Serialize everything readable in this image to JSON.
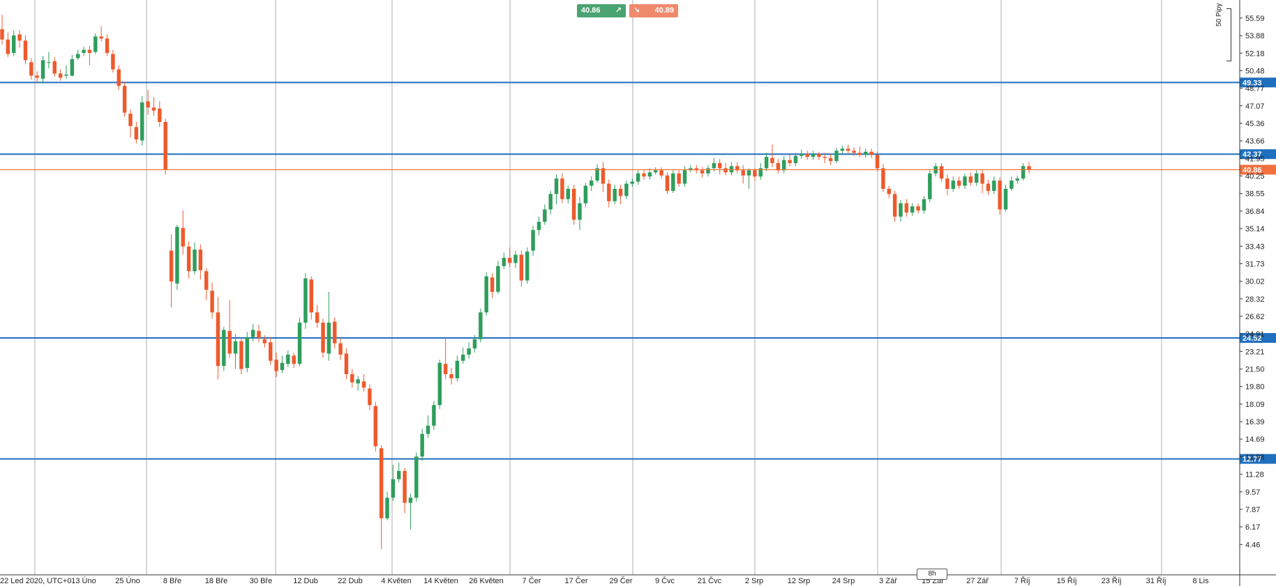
{
  "trade": {
    "buy_value": "40.86",
    "buy_icon": "arrow-up-right-icon",
    "sell_value": "40.89",
    "sell_icon": "arrow-down-right-icon",
    "buy_color": "#4aa372",
    "sell_color": "#f08a6c"
  },
  "timeframe": "8h",
  "scale_label": "50 Pipy",
  "colors": {
    "up": "#2e9e5b",
    "down": "#ee5a2c",
    "level": "#1f6fbf",
    "price": "#f2703f",
    "grid": "#9a9a9a"
  },
  "chart_data": {
    "type": "candlestick",
    "title": "",
    "timezone": "UTC+0",
    "ylim": [
      3.2,
      56.8
    ],
    "y_ticks": [
      "55.59",
      "53.88",
      "52.18",
      "50.48",
      "48.77",
      "47.07",
      "45.36",
      "43.66",
      "41.95",
      "40.25",
      "38.55",
      "36.84",
      "35.14",
      "33.43",
      "31.73",
      "30.02",
      "28.32",
      "26.62",
      "24.91",
      "23.21",
      "21.50",
      "19.80",
      "18.09",
      "16.39",
      "14.69",
      "12.98",
      "11.28",
      "9.57",
      "7.87",
      "6.17",
      "4.46"
    ],
    "x_labels": [
      "22 Led 2020, UTC+0",
      "13 Úno",
      "25 Úno",
      "8 Bře",
      "18 Bře",
      "30 Bře",
      "12 Dub",
      "22 Dub",
      "4 Květen",
      "14 Květen",
      "26 Květen",
      "7 Čer",
      "17 Čer",
      "29 Čer",
      "9 Čvc",
      "21 Čvc",
      "2 Srp",
      "12 Srp",
      "24 Srp",
      "3 Zář",
      "15 Zář",
      "27 Zář",
      "7 Říj",
      "15 Říj",
      "23 Říj",
      "31 Říj",
      "8 Lis"
    ],
    "horizontal_levels": [
      {
        "value": 49.33,
        "label": "49.33"
      },
      {
        "value": 42.37,
        "label": "42.37"
      },
      {
        "value": 24.52,
        "label": "24.52"
      },
      {
        "value": 12.77,
        "label": "12.77"
      }
    ],
    "current_price": {
      "value": 40.86,
      "label": "40.86"
    },
    "candles": [
      [
        54.5,
        53.5,
        55.9,
        53.0
      ],
      [
        53.5,
        52.1,
        54.2,
        51.8
      ],
      [
        52.2,
        53.9,
        54.4,
        51.9
      ],
      [
        54.0,
        53.4,
        54.4,
        52.7
      ],
      [
        53.4,
        51.5,
        53.9,
        51.1
      ],
      [
        51.3,
        50.0,
        51.7,
        49.6
      ],
      [
        50.0,
        49.8,
        50.4,
        49.3
      ],
      [
        49.7,
        51.5,
        51.9,
        49.2
      ],
      [
        51.3,
        51.3,
        52.3,
        50.7
      ],
      [
        51.4,
        50.2,
        51.8,
        49.9
      ],
      [
        50.2,
        49.8,
        50.6,
        49.5
      ],
      [
        50.0,
        50.1,
        51.0,
        49.7
      ],
      [
        50.0,
        51.6,
        52.0,
        49.9
      ],
      [
        51.7,
        52.1,
        52.5,
        51.5
      ],
      [
        52.2,
        52.5,
        52.8,
        51.9
      ],
      [
        52.5,
        52.2,
        52.9,
        51.0
      ],
      [
        52.3,
        53.8,
        54.1,
        52.1
      ],
      [
        53.8,
        53.6,
        54.8,
        53.3
      ],
      [
        53.6,
        52.2,
        54.0,
        51.9
      ],
      [
        52.1,
        50.6,
        52.5,
        50.3
      ],
      [
        50.6,
        49.0,
        51.0,
        48.6
      ],
      [
        49.0,
        46.4,
        49.4,
        46.0
      ],
      [
        46.3,
        45.1,
        46.7,
        44.0
      ],
      [
        45.0,
        43.8,
        45.5,
        43.4
      ],
      [
        43.7,
        47.4,
        48.0,
        43.2
      ],
      [
        47.5,
        46.9,
        48.6,
        46.2
      ],
      [
        46.9,
        46.6,
        47.9,
        46.1
      ],
      [
        46.8,
        45.5,
        47.5,
        45.0
      ],
      [
        45.5,
        40.9,
        45.8,
        40.4
      ],
      [
        33.0,
        30.0,
        34.6,
        27.5
      ],
      [
        29.8,
        35.3,
        35.5,
        29.2
      ],
      [
        35.2,
        33.4,
        36.9,
        32.6
      ],
      [
        33.4,
        31.0,
        33.9,
        30.3
      ],
      [
        31.0,
        33.1,
        33.8,
        30.7
      ],
      [
        33.1,
        31.1,
        33.6,
        30.2
      ],
      [
        31.0,
        29.2,
        31.3,
        28.2
      ],
      [
        29.1,
        27.0,
        29.9,
        26.4
      ],
      [
        27.0,
        21.8,
        28.5,
        20.5
      ],
      [
        21.8,
        25.3,
        25.6,
        21.3
      ],
      [
        25.2,
        23.0,
        28.2,
        22.6
      ],
      [
        23.0,
        24.2,
        24.9,
        21.5
      ],
      [
        24.2,
        21.5,
        24.6,
        21.0
      ],
      [
        21.6,
        24.6,
        25.1,
        21.2
      ],
      [
        24.6,
        25.3,
        25.9,
        24.2
      ],
      [
        25.2,
        24.5,
        25.8,
        24.1
      ],
      [
        24.4,
        24.0,
        24.8,
        23.6
      ],
      [
        24.1,
        22.3,
        24.6,
        21.9
      ],
      [
        22.4,
        21.3,
        23.1,
        20.7
      ],
      [
        21.4,
        22.1,
        22.8,
        21.1
      ],
      [
        22.0,
        22.9,
        23.3,
        21.7
      ],
      [
        22.8,
        22.0,
        23.1,
        21.6
      ],
      [
        22.0,
        26.0,
        26.5,
        21.8
      ],
      [
        26.0,
        30.3,
        30.8,
        25.4
      ],
      [
        30.2,
        27.0,
        30.5,
        26.3
      ],
      [
        27.0,
        26.0,
        27.7,
        25.5
      ],
      [
        26.0,
        23.1,
        26.4,
        22.6
      ],
      [
        23.0,
        26.0,
        29.0,
        22.3
      ],
      [
        26.1,
        24.0,
        26.5,
        23.5
      ],
      [
        24.0,
        22.9,
        24.5,
        22.4
      ],
      [
        23.0,
        21.0,
        23.5,
        20.5
      ],
      [
        21.0,
        20.2,
        21.5,
        19.7
      ],
      [
        20.1,
        20.5,
        20.8,
        19.4
      ],
      [
        20.3,
        19.7,
        21.0,
        19.3
      ],
      [
        19.6,
        18.0,
        20.0,
        17.5
      ],
      [
        17.9,
        14.0,
        18.3,
        13.5
      ],
      [
        13.8,
        7.0,
        14.1,
        4.0
      ],
      [
        7.0,
        9.0,
        9.6,
        6.8
      ],
      [
        9.0,
        10.8,
        12.2,
        8.7
      ],
      [
        10.8,
        11.6,
        12.4,
        10.5
      ],
      [
        11.6,
        8.5,
        11.9,
        7.5
      ],
      [
        8.5,
        9.0,
        9.4,
        5.9
      ],
      [
        9.0,
        13.0,
        13.4,
        8.6
      ],
      [
        13.0,
        15.2,
        15.7,
        12.6
      ],
      [
        15.2,
        16.0,
        17.0,
        14.8
      ],
      [
        16.0,
        18.0,
        18.4,
        15.6
      ],
      [
        18.0,
        22.1,
        22.4,
        17.6
      ],
      [
        22.0,
        21.0,
        24.6,
        20.5
      ],
      [
        21.0,
        20.6,
        21.6,
        20.0
      ],
      [
        20.6,
        22.3,
        22.8,
        20.3
      ],
      [
        22.3,
        22.9,
        23.6,
        22.0
      ],
      [
        22.9,
        23.5,
        24.1,
        22.5
      ],
      [
        23.5,
        24.4,
        24.8,
        23.1
      ],
      [
        24.4,
        27.0,
        27.4,
        24.1
      ],
      [
        27.0,
        30.5,
        30.9,
        26.7
      ],
      [
        30.4,
        29.0,
        30.8,
        28.4
      ],
      [
        29.0,
        31.5,
        32.0,
        28.8
      ],
      [
        31.5,
        32.3,
        32.8,
        31.2
      ],
      [
        32.3,
        31.8,
        33.3,
        31.4
      ],
      [
        31.8,
        32.6,
        33.0,
        31.3
      ],
      [
        32.6,
        30.1,
        33.0,
        29.5
      ],
      [
        30.1,
        32.9,
        33.3,
        29.8
      ],
      [
        33.0,
        35.0,
        35.4,
        32.5
      ],
      [
        35.0,
        35.8,
        36.3,
        34.5
      ],
      [
        35.8,
        37.0,
        37.5,
        35.5
      ],
      [
        37.0,
        38.5,
        38.8,
        36.5
      ],
      [
        38.5,
        40.0,
        40.4,
        37.5
      ],
      [
        40.0,
        38.0,
        40.5,
        37.6
      ],
      [
        38.0,
        39.0,
        39.3,
        37.6
      ],
      [
        39.0,
        36.0,
        39.4,
        35.5
      ],
      [
        36.0,
        37.6,
        38.2,
        35.0
      ],
      [
        37.6,
        39.3,
        39.6,
        37.2
      ],
      [
        39.3,
        39.8,
        40.2,
        38.8
      ],
      [
        39.8,
        41.0,
        41.4,
        39.6
      ],
      [
        41.0,
        39.5,
        41.6,
        38.7
      ],
      [
        39.5,
        37.8,
        39.9,
        37.2
      ],
      [
        37.8,
        39.0,
        39.4,
        37.5
      ],
      [
        39.0,
        38.3,
        39.4,
        37.5
      ],
      [
        38.3,
        39.5,
        39.8,
        38.0
      ],
      [
        39.5,
        39.7,
        40.0,
        39.2
      ],
      [
        39.7,
        40.5,
        40.8,
        39.4
      ],
      [
        40.5,
        40.2,
        40.9,
        39.9
      ],
      [
        40.2,
        40.6,
        41.0,
        39.9
      ],
      [
        40.6,
        40.8,
        41.1,
        40.4
      ],
      [
        40.8,
        40.3,
        41.1,
        40.0
      ],
      [
        40.3,
        38.8,
        40.6,
        38.5
      ],
      [
        38.8,
        40.5,
        40.8,
        38.6
      ],
      [
        40.5,
        39.5,
        40.8,
        39.2
      ],
      [
        39.5,
        40.8,
        41.2,
        39.2
      ],
      [
        40.8,
        41.0,
        41.3,
        40.6
      ],
      [
        41.0,
        40.8,
        41.3,
        40.5
      ],
      [
        40.8,
        40.5,
        41.1,
        40.1
      ],
      [
        40.5,
        41.0,
        41.3,
        40.2
      ],
      [
        41.0,
        41.5,
        42.0,
        40.7
      ],
      [
        41.5,
        41.0,
        41.9,
        40.4
      ],
      [
        41.0,
        40.6,
        41.5,
        40.3
      ],
      [
        40.6,
        41.2,
        41.6,
        40.3
      ],
      [
        41.2,
        40.8,
        41.6,
        40.5
      ],
      [
        40.8,
        40.3,
        41.3,
        39.5
      ],
      [
        40.3,
        40.8,
        41.0,
        39.0
      ],
      [
        40.8,
        40.2,
        41.0,
        39.8
      ],
      [
        40.2,
        41.0,
        41.5,
        39.9
      ],
      [
        41.0,
        42.1,
        42.5,
        40.7
      ],
      [
        42.0,
        41.5,
        43.3,
        41.1
      ],
      [
        41.5,
        40.8,
        41.9,
        40.5
      ],
      [
        40.8,
        41.8,
        42.2,
        40.5
      ],
      [
        41.8,
        41.5,
        42.3,
        41.2
      ],
      [
        41.5,
        42.2,
        42.5,
        41.2
      ],
      [
        42.2,
        42.4,
        42.8,
        41.9
      ],
      [
        42.4,
        42.1,
        42.7,
        41.8
      ],
      [
        42.1,
        42.4,
        42.7,
        41.8
      ],
      [
        42.4,
        42.1,
        42.6,
        41.8
      ],
      [
        42.1,
        42.0,
        42.5,
        41.5
      ],
      [
        42.0,
        41.7,
        42.4,
        41.3
      ],
      [
        41.7,
        42.7,
        43.0,
        41.5
      ],
      [
        42.7,
        42.9,
        43.2,
        42.4
      ],
      [
        42.9,
        42.7,
        43.3,
        42.4
      ],
      [
        42.7,
        42.5,
        43.0,
        42.2
      ],
      [
        42.5,
        42.3,
        43.1,
        42.1
      ],
      [
        42.3,
        42.6,
        42.9,
        42.0
      ],
      [
        42.6,
        42.3,
        42.9,
        42.0
      ],
      [
        42.3,
        41.0,
        42.6,
        40.7
      ],
      [
        41.0,
        39.0,
        41.4,
        38.7
      ],
      [
        39.0,
        38.5,
        39.3,
        38.1
      ],
      [
        38.5,
        36.3,
        38.8,
        35.8
      ],
      [
        36.3,
        37.6,
        37.9,
        35.8
      ],
      [
        37.6,
        36.7,
        38.0,
        36.3
      ],
      [
        36.7,
        37.3,
        37.6,
        36.4
      ],
      [
        37.3,
        36.9,
        37.6,
        36.6
      ],
      [
        36.9,
        38.0,
        38.3,
        36.6
      ],
      [
        38.0,
        40.5,
        40.8,
        37.7
      ],
      [
        40.5,
        41.2,
        41.5,
        40.2
      ],
      [
        41.2,
        40.0,
        41.5,
        39.7
      ],
      [
        40.0,
        39.0,
        40.4,
        38.4
      ],
      [
        39.0,
        39.8,
        40.2,
        38.7
      ],
      [
        39.8,
        39.3,
        40.2,
        39.0
      ],
      [
        39.3,
        40.2,
        40.5,
        39.0
      ],
      [
        40.2,
        39.6,
        40.6,
        39.3
      ],
      [
        39.6,
        40.5,
        40.8,
        39.3
      ],
      [
        40.5,
        39.5,
        40.9,
        38.6
      ],
      [
        39.5,
        38.8,
        39.9,
        38.4
      ],
      [
        38.8,
        39.8,
        40.2,
        38.5
      ],
      [
        39.8,
        37.0,
        40.1,
        36.5
      ],
      [
        37.0,
        39.0,
        39.4,
        36.8
      ],
      [
        39.0,
        39.8,
        40.2,
        38.8
      ],
      [
        39.8,
        40.0,
        40.3,
        39.5
      ],
      [
        40.0,
        41.2,
        41.5,
        39.8
      ],
      [
        41.2,
        40.9,
        41.6,
        40.5
      ]
    ]
  }
}
